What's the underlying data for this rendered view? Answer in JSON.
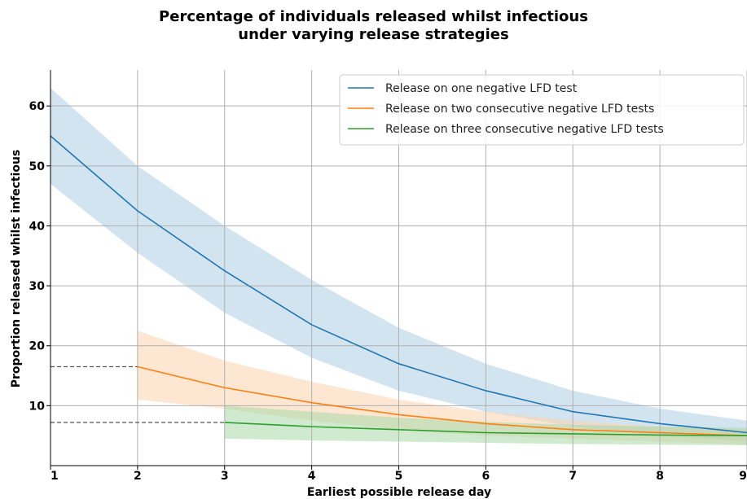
{
  "chart_data": {
    "type": "line",
    "title_lines": [
      "Percentage of individuals released whilst infectious",
      "under varying release strategies"
    ],
    "xlabel": "Earliest possible release day",
    "ylabel": "Proportion released whilst infectious",
    "xlim": [
      1,
      9
    ],
    "ylim": [
      0,
      66
    ],
    "x_ticks": [
      1,
      2,
      3,
      4,
      5,
      6,
      7,
      8,
      9
    ],
    "y_ticks": [
      10,
      20,
      30,
      40,
      50,
      60
    ],
    "grid": true,
    "legend_position": "top-right",
    "series": [
      {
        "name": "Release on one negative LFD test",
        "color": "#1f77b4",
        "band_color": "#aecde6",
        "x": [
          1,
          2,
          3,
          4,
          5,
          6,
          7,
          8,
          9
        ],
        "values": [
          55,
          42.5,
          32.5,
          23.5,
          17,
          12.5,
          9,
          7,
          5.5
        ],
        "lower": [
          47,
          35.5,
          25.5,
          18,
          12.5,
          9,
          6.5,
          5,
          4
        ],
        "upper": [
          63,
          50,
          40,
          31,
          23,
          17,
          12.5,
          9.5,
          7.5
        ]
      },
      {
        "name": "Release on two consecutive negative LFD tests",
        "color": "#ff7f0e",
        "band_color": "#fcd2ad",
        "x": [
          2,
          3,
          4,
          5,
          6,
          7,
          8,
          9
        ],
        "values": [
          16.5,
          13,
          10.5,
          8.5,
          7,
          6,
          5.5,
          5
        ],
        "lower": [
          11,
          9.5,
          7.5,
          6,
          5,
          4.5,
          4,
          3.5
        ],
        "upper": [
          22.5,
          17.5,
          14,
          11,
          9,
          7.5,
          6.5,
          6
        ]
      },
      {
        "name": "Release on three consecutive negative LFD tests",
        "color": "#2ca02c",
        "band_color": "#a8d8a8",
        "x": [
          3,
          4,
          5,
          6,
          7,
          8,
          9
        ],
        "values": [
          7.2,
          6.5,
          6,
          5.5,
          5.3,
          5.1,
          5
        ],
        "lower": [
          4.5,
          4.2,
          4,
          3.8,
          3.6,
          3.5,
          3.4
        ],
        "upper": [
          10,
          9,
          8,
          7.3,
          6.8,
          6.5,
          6.3
        ]
      }
    ],
    "reference_lines": [
      {
        "y": 16.5,
        "x_end": 2
      },
      {
        "y": 7.2,
        "x_end": 3
      }
    ]
  }
}
